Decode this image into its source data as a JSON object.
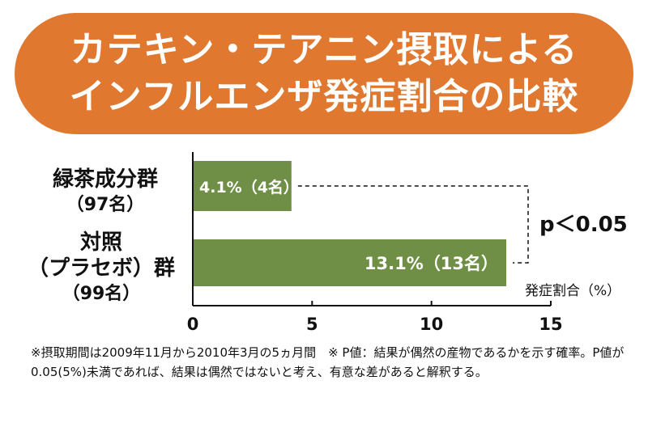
{
  "title": {
    "line1": "カテキン・テアニン摂取による",
    "line2": "インフルエンザ発症割合の比較"
  },
  "colors": {
    "banner": "#e0782f",
    "bar": "#6e8f45",
    "bar_label": "#ffffff"
  },
  "chart_data": {
    "type": "bar",
    "orientation": "horizontal",
    "categories": [
      {
        "name": "緑茶成分群",
        "sub": "（97名）"
      },
      {
        "name_lines": [
          "対照",
          "（プラセボ）群"
        ],
        "sub": "（99名）"
      }
    ],
    "values": [
      4.1,
      13.1
    ],
    "data_labels": [
      "4.1%（4名）",
      "13.1%（13名）"
    ],
    "xlabel": "発症割合（%）",
    "xlim": [
      0,
      15
    ],
    "xticks": [
      0,
      5,
      10,
      15
    ],
    "annotation": "p＜0.05",
    "grid": false
  },
  "footnote": "※摂取期間は2009年11月から2010年3月の5ヵ月間　※ P値：結果が偶然の産物であるかを示す確率。P値が 0.05(5%)未満であれば、結果は偶然ではないと考え、有意な差があると解釈する。"
}
